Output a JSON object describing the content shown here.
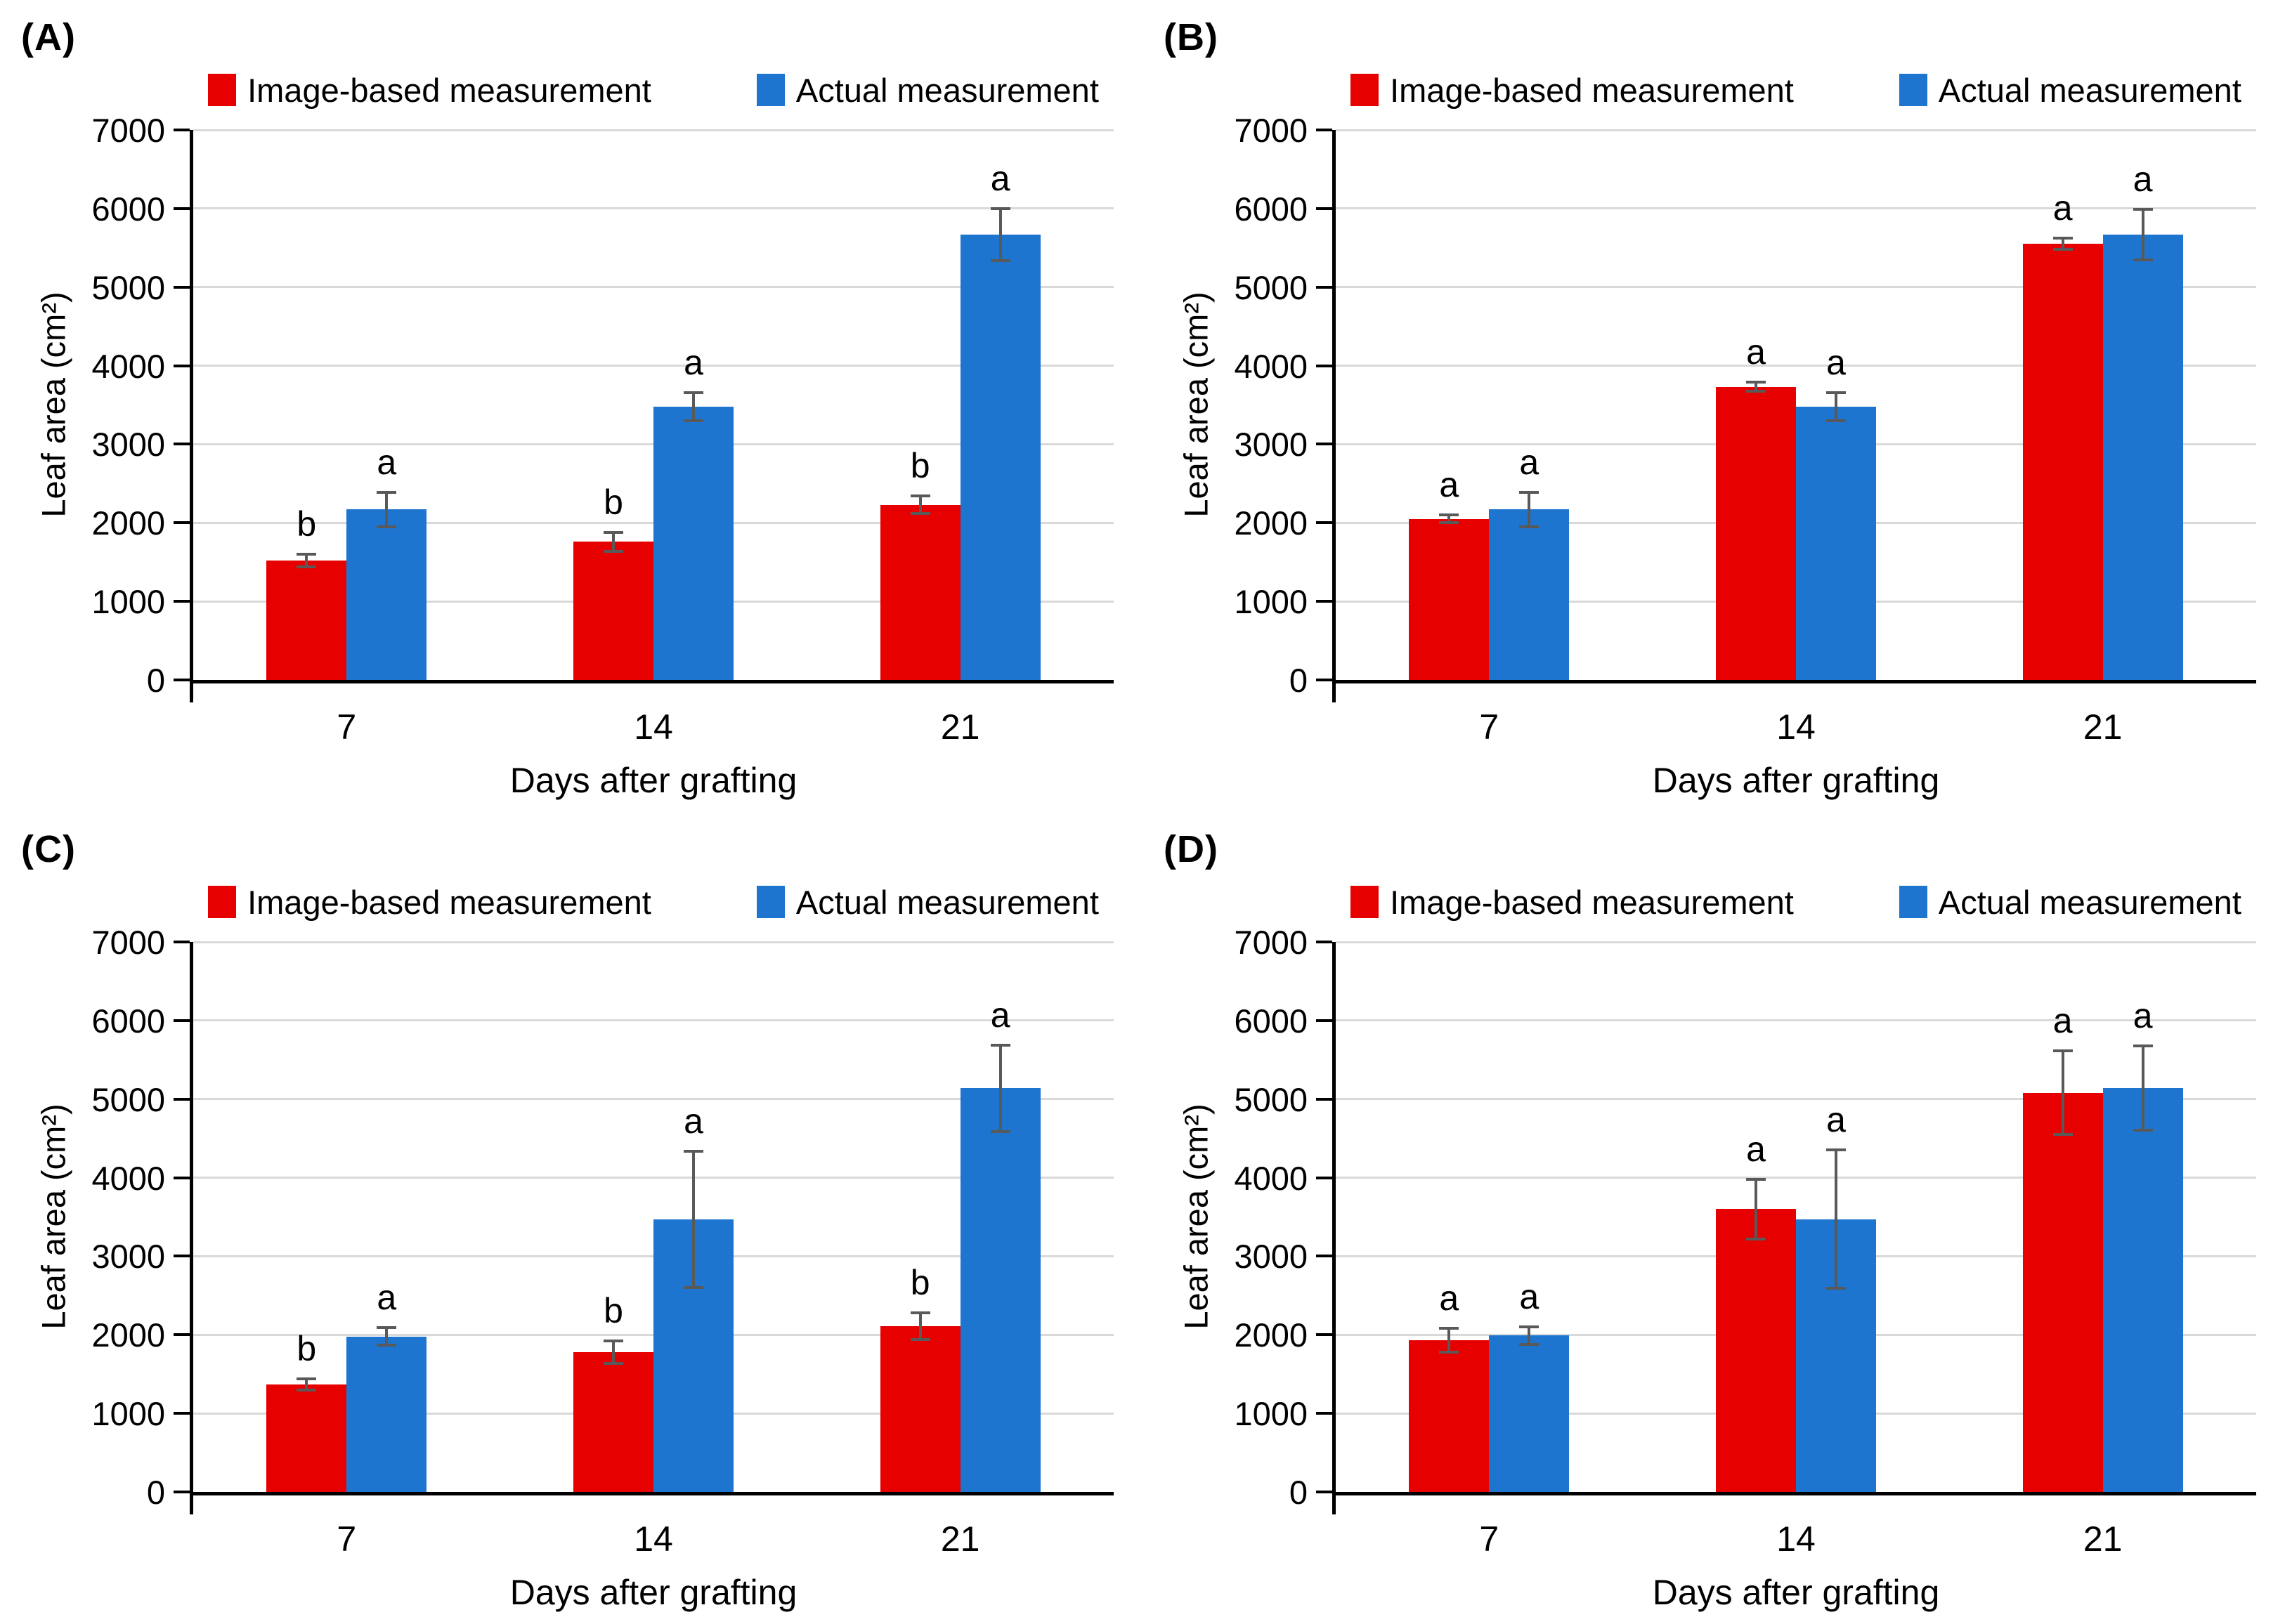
{
  "figure": {
    "background": "#ffffff",
    "grid_color": "#d9d9d9",
    "axis_color": "#000000",
    "error_bar_color": "#595959"
  },
  "chart_data": [
    {
      "type": "bar",
      "panel": "(A)",
      "categories": [
        "7",
        "14",
        "21"
      ],
      "xlabel": "Days after grafting",
      "ylabel": "Leaf area (cm²)",
      "ylim": [
        0,
        7000
      ],
      "yticks": [
        0,
        1000,
        2000,
        3000,
        4000,
        5000,
        6000,
        7000
      ],
      "grid": true,
      "legend_position": "top",
      "series": [
        {
          "key": "image-based",
          "name": "Image-based measurement",
          "color": "#e60000",
          "values": [
            1520,
            1760,
            2230
          ],
          "errors": [
            80,
            120,
            110
          ],
          "letters": [
            "b",
            "b",
            "b"
          ]
        },
        {
          "key": "actual",
          "name": "Actual measurement",
          "color": "#1e75d0",
          "values": [
            2170,
            3480,
            5670
          ],
          "errors": [
            220,
            180,
            330
          ],
          "letters": [
            "a",
            "a",
            "a"
          ]
        }
      ]
    },
    {
      "type": "bar",
      "panel": "(B)",
      "categories": [
        "7",
        "14",
        "21"
      ],
      "xlabel": "Days after grafting",
      "ylabel": "Leaf area (cm²)",
      "ylim": [
        0,
        7000
      ],
      "yticks": [
        0,
        1000,
        2000,
        3000,
        4000,
        5000,
        6000,
        7000
      ],
      "grid": true,
      "legend_position": "top",
      "series": [
        {
          "key": "image-based",
          "name": "Image-based measurement",
          "color": "#e60000",
          "values": [
            2050,
            3730,
            5550
          ],
          "errors": [
            50,
            60,
            70
          ],
          "letters": [
            "a",
            "a",
            "a"
          ]
        },
        {
          "key": "actual",
          "name": "Actual measurement",
          "color": "#1e75d0",
          "values": [
            2170,
            3480,
            5670
          ],
          "errors": [
            220,
            180,
            320
          ],
          "letters": [
            "a",
            "a",
            "a"
          ]
        }
      ]
    },
    {
      "type": "bar",
      "panel": "(C)",
      "categories": [
        "7",
        "14",
        "21"
      ],
      "xlabel": "Days after grafting",
      "ylabel": "Leaf area (cm²)",
      "ylim": [
        0,
        7000
      ],
      "yticks": [
        0,
        1000,
        2000,
        3000,
        4000,
        5000,
        6000,
        7000
      ],
      "grid": true,
      "legend_position": "top",
      "series": [
        {
          "key": "image-based",
          "name": "Image-based measurement",
          "color": "#e60000",
          "values": [
            1370,
            1780,
            2110
          ],
          "errors": [
            70,
            140,
            170
          ],
          "letters": [
            "b",
            "b",
            "b"
          ]
        },
        {
          "key": "actual",
          "name": "Actual measurement",
          "color": "#1e75d0",
          "values": [
            1980,
            3470,
            5140
          ],
          "errors": [
            110,
            870,
            550
          ],
          "letters": [
            "a",
            "a",
            "a"
          ]
        }
      ]
    },
    {
      "type": "bar",
      "panel": "(D)",
      "categories": [
        "7",
        "14",
        "21"
      ],
      "xlabel": "Days after grafting",
      "ylabel": "Leaf area (cm²)",
      "ylim": [
        0,
        7000
      ],
      "yticks": [
        0,
        1000,
        2000,
        3000,
        4000,
        5000,
        6000,
        7000
      ],
      "grid": true,
      "legend_position": "top",
      "series": [
        {
          "key": "image-based",
          "name": "Image-based measurement",
          "color": "#e60000",
          "values": [
            1930,
            3600,
            5080
          ],
          "errors": [
            150,
            380,
            530
          ],
          "letters": [
            "a",
            "a",
            "a"
          ]
        },
        {
          "key": "actual",
          "name": "Actual measurement",
          "color": "#1e75d0",
          "values": [
            1990,
            3470,
            5140
          ],
          "errors": [
            110,
            880,
            540
          ],
          "letters": [
            "a",
            "a",
            "a"
          ]
        }
      ]
    }
  ]
}
